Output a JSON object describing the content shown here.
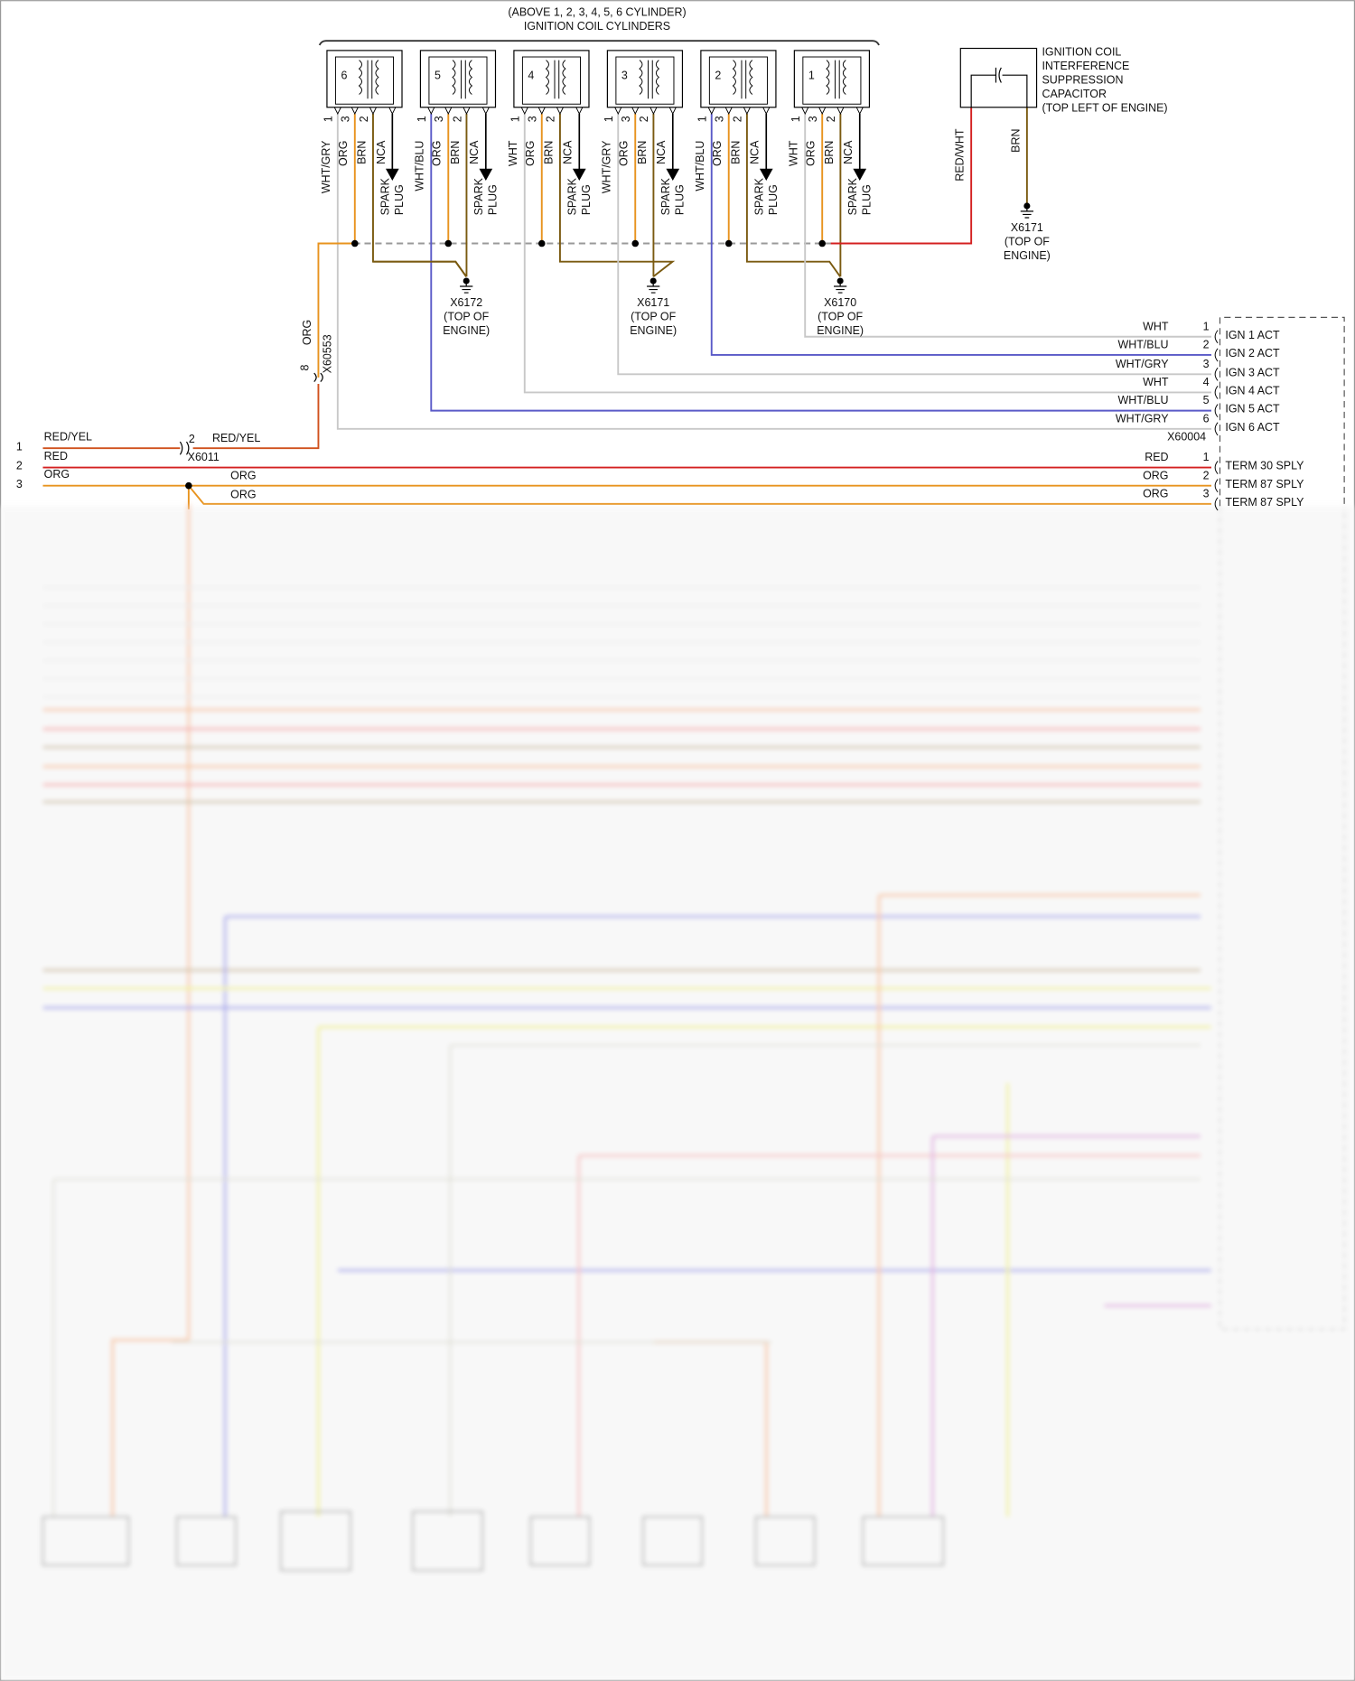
{
  "header": {
    "line1": "(ABOVE 1, 2, 3, 4, 5, 6 CYLINDER)",
    "line2": "IGNITION COIL CYLINDERS"
  },
  "coils": [
    {
      "number": "6",
      "pins": [
        "1",
        "3",
        "2"
      ],
      "wires": [
        "WHT/GRY",
        "ORG",
        "BRN",
        "NCA"
      ],
      "output": [
        "SPARK",
        "PLUG"
      ]
    },
    {
      "number": "5",
      "pins": [
        "1",
        "3",
        "2"
      ],
      "wires": [
        "WHT/BLU",
        "ORG",
        "BRN",
        "NCA"
      ],
      "output": [
        "SPARK",
        "PLUG"
      ]
    },
    {
      "number": "4",
      "pins": [
        "1",
        "3",
        "2"
      ],
      "wires": [
        "WHT",
        "ORG",
        "BRN",
        "NCA"
      ],
      "output": [
        "SPARK",
        "PLUG"
      ]
    },
    {
      "number": "3",
      "pins": [
        "1",
        "3",
        "2"
      ],
      "wires": [
        "WHT/GRY",
        "ORG",
        "BRN",
        "NCA"
      ],
      "output": [
        "SPARK",
        "PLUG"
      ]
    },
    {
      "number": "2",
      "pins": [
        "1",
        "3",
        "2"
      ],
      "wires": [
        "WHT/BLU",
        "ORG",
        "BRN",
        "NCA"
      ],
      "output": [
        "SPARK",
        "PLUG"
      ]
    },
    {
      "number": "1",
      "pins": [
        "1",
        "3",
        "2"
      ],
      "wires": [
        "WHT",
        "ORG",
        "BRN",
        "NCA"
      ],
      "output": [
        "SPARK",
        "PLUG"
      ]
    }
  ],
  "grounds": [
    {
      "id": "X6172",
      "location": [
        "(TOP OF",
        "ENGINE)"
      ]
    },
    {
      "id": "X6171",
      "location": [
        "(TOP OF",
        "ENGINE)"
      ]
    },
    {
      "id": "X6170",
      "location": [
        "(TOP OF",
        "ENGINE)"
      ]
    }
  ],
  "capacitor": {
    "label": [
      "IGNITION COIL",
      "INTERFERENCE",
      "SUPPRESSION",
      "CAPACITOR",
      "(TOP LEFT OF ENGINE)"
    ],
    "wires": [
      "RED/WHT",
      "BRN"
    ],
    "ground": {
      "id": "X6171",
      "location": [
        "(TOP OF",
        "ENGINE)"
      ]
    }
  },
  "x60553": {
    "id": "X60553",
    "pin": "8",
    "wire": "ORG"
  },
  "x6011": {
    "id": "X6011",
    "pin": "2",
    "wire": "RED/YEL"
  },
  "left_pins": [
    {
      "pin": "1",
      "wire": "RED/YEL"
    },
    {
      "pin": "2",
      "wire": "RED"
    },
    {
      "pin": "3",
      "wire": "ORG"
    }
  ],
  "splice_wires": [
    "ORG",
    "ORG"
  ],
  "x60004": {
    "id": "X60004",
    "rows": [
      {
        "wire": "WHT",
        "pin": "1",
        "function": "IGN 1 ACT"
      },
      {
        "wire": "WHT/BLU",
        "pin": "2",
        "function": "IGN 2 ACT"
      },
      {
        "wire": "WHT/GRY",
        "pin": "3",
        "function": "IGN 3 ACT"
      },
      {
        "wire": "WHT",
        "pin": "4",
        "function": "IGN 4 ACT"
      },
      {
        "wire": "WHT/BLU",
        "pin": "5",
        "function": "IGN 5 ACT"
      },
      {
        "wire": "WHT/GRY",
        "pin": "6",
        "function": "IGN 6 ACT"
      }
    ]
  },
  "supply": {
    "rows": [
      {
        "wire": "RED",
        "pin": "1",
        "function": "TERM 30 SPLY"
      },
      {
        "wire": "ORG",
        "pin": "2",
        "function": "TERM 87 SPLY"
      },
      {
        "wire": "ORG",
        "pin": "3",
        "function": "TERM 87 SPLY"
      }
    ]
  }
}
